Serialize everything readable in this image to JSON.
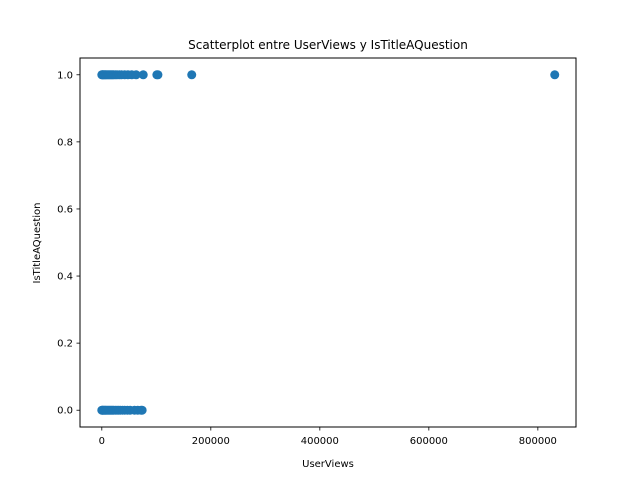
{
  "chart_data": {
    "type": "scatter",
    "title": "Scatterplot entre UserViews y IsTitleAQuestion",
    "xlabel": "UserViews",
    "ylabel": "IsTitleAQuestion",
    "xlim": [
      -40000,
      870000
    ],
    "ylim": [
      -0.05,
      1.05
    ],
    "xticks": [
      0,
      200000,
      400000,
      600000,
      800000
    ],
    "yticks": [
      0.0,
      0.2,
      0.4,
      0.6,
      0.8,
      1.0
    ],
    "xtick_labels": [
      "0",
      "200000",
      "400000",
      "600000",
      "800000"
    ],
    "ytick_labels": [
      "0.0",
      "0.2",
      "0.4",
      "0.6",
      "0.8",
      "1.0"
    ],
    "grid": false,
    "color": "#1f77b4",
    "series": [
      {
        "points": [
          {
            "x": 0,
            "y": 1
          },
          {
            "x": 1000,
            "y": 1
          },
          {
            "x": 2000,
            "y": 1
          },
          {
            "x": 3500,
            "y": 1
          },
          {
            "x": 5000,
            "y": 1
          },
          {
            "x": 6500,
            "y": 1
          },
          {
            "x": 8000,
            "y": 1
          },
          {
            "x": 10000,
            "y": 1
          },
          {
            "x": 12000,
            "y": 1
          },
          {
            "x": 14000,
            "y": 1
          },
          {
            "x": 16000,
            "y": 1
          },
          {
            "x": 18000,
            "y": 1
          },
          {
            "x": 20000,
            "y": 1
          },
          {
            "x": 22000,
            "y": 1
          },
          {
            "x": 25000,
            "y": 1
          },
          {
            "x": 28000,
            "y": 1
          },
          {
            "x": 32000,
            "y": 1
          },
          {
            "x": 36000,
            "y": 1
          },
          {
            "x": 42000,
            "y": 1
          },
          {
            "x": 48000,
            "y": 1
          },
          {
            "x": 55000,
            "y": 1
          },
          {
            "x": 63000,
            "y": 1
          },
          {
            "x": 76000,
            "y": 1
          },
          {
            "x": 101000,
            "y": 1
          },
          {
            "x": 103000,
            "y": 1
          },
          {
            "x": 165000,
            "y": 1
          },
          {
            "x": 831000,
            "y": 1
          },
          {
            "x": 0,
            "y": 0
          },
          {
            "x": 1000,
            "y": 0
          },
          {
            "x": 2000,
            "y": 0
          },
          {
            "x": 3500,
            "y": 0
          },
          {
            "x": 5000,
            "y": 0
          },
          {
            "x": 6500,
            "y": 0
          },
          {
            "x": 8000,
            "y": 0
          },
          {
            "x": 10000,
            "y": 0
          },
          {
            "x": 12000,
            "y": 0
          },
          {
            "x": 14000,
            "y": 0
          },
          {
            "x": 16000,
            "y": 0
          },
          {
            "x": 18000,
            "y": 0
          },
          {
            "x": 20000,
            "y": 0
          },
          {
            "x": 22000,
            "y": 0
          },
          {
            "x": 25000,
            "y": 0
          },
          {
            "x": 28000,
            "y": 0
          },
          {
            "x": 31000,
            "y": 0
          },
          {
            "x": 34000,
            "y": 0
          },
          {
            "x": 38000,
            "y": 0
          },
          {
            "x": 42000,
            "y": 0
          },
          {
            "x": 47000,
            "y": 0
          },
          {
            "x": 52000,
            "y": 0
          },
          {
            "x": 60000,
            "y": 0
          },
          {
            "x": 66000,
            "y": 0
          },
          {
            "x": 72000,
            "y": 0
          },
          {
            "x": 74000,
            "y": 0
          }
        ]
      }
    ]
  }
}
